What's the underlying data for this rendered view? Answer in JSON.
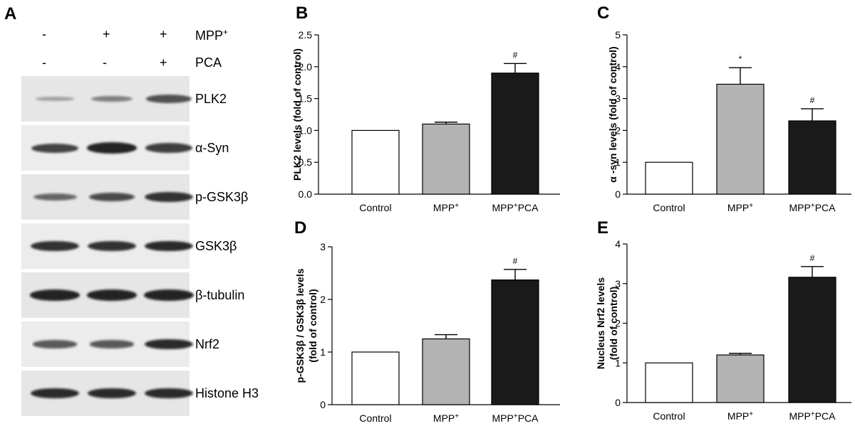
{
  "panel_a": {
    "letter": "A",
    "treatments": [
      {
        "label": "MPP",
        "sup": "+",
        "signs": [
          "-",
          "+",
          "+"
        ]
      },
      {
        "label": "PCA",
        "sup": "",
        "signs": [
          "-",
          "-",
          "+"
        ]
      }
    ],
    "blots": [
      {
        "label": "PLK2",
        "intensities": [
          0.12,
          0.35,
          0.65
        ]
      },
      {
        "label": "α-Syn",
        "intensities": [
          0.75,
          0.95,
          0.78
        ]
      },
      {
        "label": "p-GSK3β",
        "intensities": [
          0.5,
          0.7,
          0.85
        ]
      },
      {
        "label": "GSK3β",
        "intensities": [
          0.85,
          0.85,
          0.9
        ]
      },
      {
        "label": "β-tubulin",
        "intensities": [
          0.95,
          0.95,
          0.95
        ]
      },
      {
        "label": "Nrf2",
        "intensities": [
          0.6,
          0.6,
          0.9
        ]
      },
      {
        "label": "Histone H3",
        "intensities": [
          0.9,
          0.9,
          0.9
        ]
      }
    ]
  },
  "chart_data": [
    {
      "panel": "B",
      "type": "bar",
      "categories": [
        "Control",
        "MPP+",
        "MPP+PCA"
      ],
      "values": [
        1.0,
        1.1,
        1.9
      ],
      "errors": [
        0,
        0.03,
        0.15
      ],
      "annotations": [
        "",
        "",
        "#"
      ],
      "ylabel_lines": [
        "PLK2  levels  (fold of control)"
      ],
      "ylim": [
        0,
        2.5
      ],
      "yticks": [
        "0.0",
        "0.5",
        "1.0",
        "1.5",
        "2.0",
        "2.5"
      ]
    },
    {
      "panel": "C",
      "type": "bar",
      "categories": [
        "Control",
        "MPP+",
        "MPP+PCA"
      ],
      "values": [
        1.0,
        3.45,
        2.3
      ],
      "errors": [
        0,
        0.52,
        0.38
      ],
      "annotations": [
        "",
        "*",
        "#"
      ],
      "ylabel_lines": [
        "α -syn  levels  (fold of control)"
      ],
      "ylim": [
        0,
        5
      ],
      "yticks": [
        "0",
        "1",
        "2",
        "3",
        "4",
        "5"
      ]
    },
    {
      "panel": "D",
      "type": "bar",
      "categories": [
        "Control",
        "MPP+",
        "MPP+PCA"
      ],
      "values": [
        1.0,
        1.25,
        2.37
      ],
      "errors": [
        0,
        0.08,
        0.2
      ],
      "annotations": [
        "",
        "",
        "#"
      ],
      "ylabel_lines": [
        "p-GSK3β / GSK3β levels",
        "(fold of control)"
      ],
      "ylim": [
        0,
        3
      ],
      "yticks": [
        "0",
        "1",
        "2",
        "3"
      ]
    },
    {
      "panel": "E",
      "type": "bar",
      "categories": [
        "Control",
        "MPP+",
        "MPP+PCA"
      ],
      "values": [
        1.0,
        1.2,
        3.16
      ],
      "errors": [
        0,
        0.04,
        0.27
      ],
      "annotations": [
        "",
        "",
        "#"
      ],
      "ylabel_lines": [
        "Nucleus Nrf2  levels",
        "(fold of control)"
      ],
      "ylim": [
        0,
        4
      ],
      "yticks": [
        "0",
        "1",
        "2",
        "3",
        "4"
      ]
    }
  ],
  "colors": {
    "control_fill": "#ffffff",
    "mpp_fill": "#b3b3b3",
    "mpp_pca_fill": "#1a1a1a",
    "band": "#1c1c1c"
  }
}
